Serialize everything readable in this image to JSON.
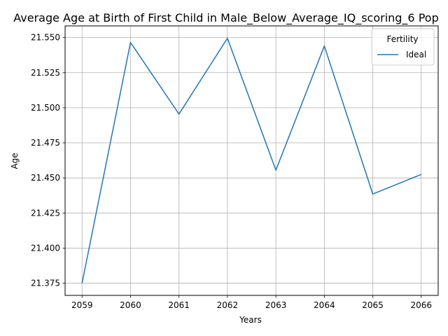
{
  "chart_data": {
    "type": "line",
    "title": "Average Age at Birth of First Child in Male_Below_Average_IQ_scoring_6 Pop",
    "xlabel": "Years",
    "ylabel": "Age",
    "x": [
      2059,
      2060,
      2061,
      2062,
      2063,
      2064,
      2065,
      2066
    ],
    "x_ticks": [
      "2059",
      "2060",
      "2061",
      "2062",
      "2063",
      "2064",
      "2065",
      "2066"
    ],
    "y_ticks": [
      21.375,
      21.4,
      21.425,
      21.45,
      21.475,
      21.5,
      21.525,
      21.55
    ],
    "y_tick_labels": [
      "21.375",
      "21.400",
      "21.425",
      "21.450",
      "21.475",
      "21.500",
      "21.525",
      "21.550"
    ],
    "xlim": [
      2058.65,
      2066.35
    ],
    "ylim": [
      21.3663,
      21.5583
    ],
    "grid": true,
    "legend": {
      "title": "Fertility",
      "placement": "top-right"
    },
    "series": [
      {
        "name": "Ideal",
        "color": "#1f77b4",
        "values": [
          21.375,
          21.5465,
          21.4955,
          21.5495,
          21.4555,
          21.544,
          21.4385,
          21.4525
        ]
      }
    ]
  }
}
